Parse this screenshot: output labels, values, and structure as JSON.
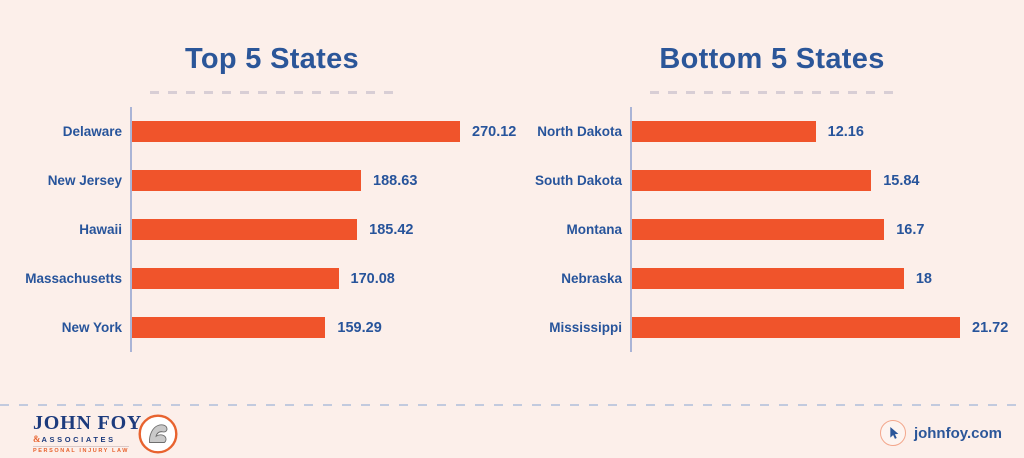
{
  "colors": {
    "background": "#FCEFEA",
    "bar": "#F0542B",
    "heading": "#2B5699",
    "label": "#27549B",
    "axis": "#AAB4D6",
    "title_divider": "#D8CED5",
    "footer_divider": "#C2CADE",
    "logo_blue": "#1D3B7D",
    "logo_orange": "#E8632F"
  },
  "chart_data": [
    {
      "type": "bar",
      "orientation": "horizontal",
      "title": "Top 5 States",
      "categories": [
        "Delaware",
        "New Jersey",
        "Hawaii",
        "Massachusetts",
        "New York"
      ],
      "values": [
        270.12,
        188.63,
        185.42,
        170.08,
        159.29
      ],
      "value_labels": [
        "270.12",
        "188.63",
        "185.42",
        "170.08",
        "159.29"
      ],
      "xlim": [
        0,
        270.12
      ],
      "grid": false,
      "legend": false,
      "bar_color": "#F0542B"
    },
    {
      "type": "bar",
      "orientation": "horizontal",
      "title": "Bottom 5 States",
      "categories": [
        "North Dakota",
        "South Dakota",
        "Montana",
        "Nebraska",
        "Mississippi"
      ],
      "values": [
        12.16,
        15.84,
        16.7,
        18,
        21.72
      ],
      "value_labels": [
        "12.16",
        "15.84",
        "16.7",
        "18",
        "21.72"
      ],
      "xlim": [
        0,
        21.72
      ],
      "grid": false,
      "legend": false,
      "bar_color": "#F0542B"
    }
  ],
  "footer": {
    "brand": {
      "name": "JOHN FOY",
      "ampersand": "&",
      "associates": "ASSOCIATES",
      "tagline": "PERSONAL INJURY LAW",
      "emblem_icon": "flexed-arm-icon"
    },
    "website_label": "johnfoy.com",
    "website_icon": "cursor-icon"
  }
}
